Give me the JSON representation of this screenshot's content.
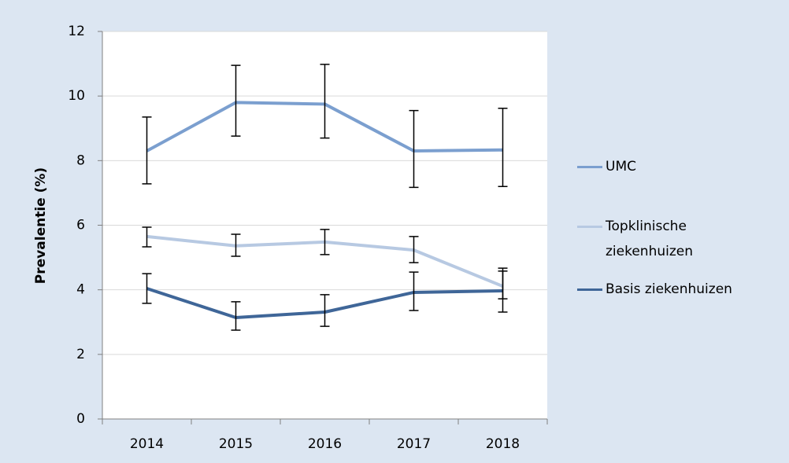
{
  "chart_data": {
    "type": "line",
    "y_label": "Prevalentie (%)",
    "categories": [
      "2014",
      "2015",
      "2016",
      "2017",
      "2018"
    ],
    "series": [
      {
        "name": "UMC",
        "color": "#7b9fcf",
        "values": [
          8.3,
          9.8,
          9.75,
          8.3,
          8.33
        ],
        "error_plus": [
          1.05,
          1.15,
          1.23,
          1.25,
          1.29
        ],
        "error_minus": [
          1.02,
          1.04,
          1.05,
          1.13,
          1.13
        ]
      },
      {
        "name": "Topklinische ziekenhuizen",
        "color": "#b7c9e2",
        "values": [
          5.65,
          5.36,
          5.48,
          5.23,
          4.11
        ],
        "error_plus": [
          0.29,
          0.36,
          0.39,
          0.42,
          0.56
        ],
        "error_minus": [
          0.32,
          0.32,
          0.39,
          0.39,
          0.39
        ]
      },
      {
        "name": "Basis ziekenhuizen",
        "color": "#3f6698",
        "values": [
          4.04,
          3.14,
          3.31,
          3.92,
          3.97
        ],
        "error_plus": [
          0.46,
          0.49,
          0.54,
          0.63,
          0.61
        ],
        "error_minus": [
          0.46,
          0.39,
          0.44,
          0.56,
          0.66
        ]
      }
    ],
    "ylim": [
      0,
      12
    ],
    "yticks": [
      0,
      2,
      4,
      6,
      8,
      10,
      12
    ],
    "grid": true
  }
}
